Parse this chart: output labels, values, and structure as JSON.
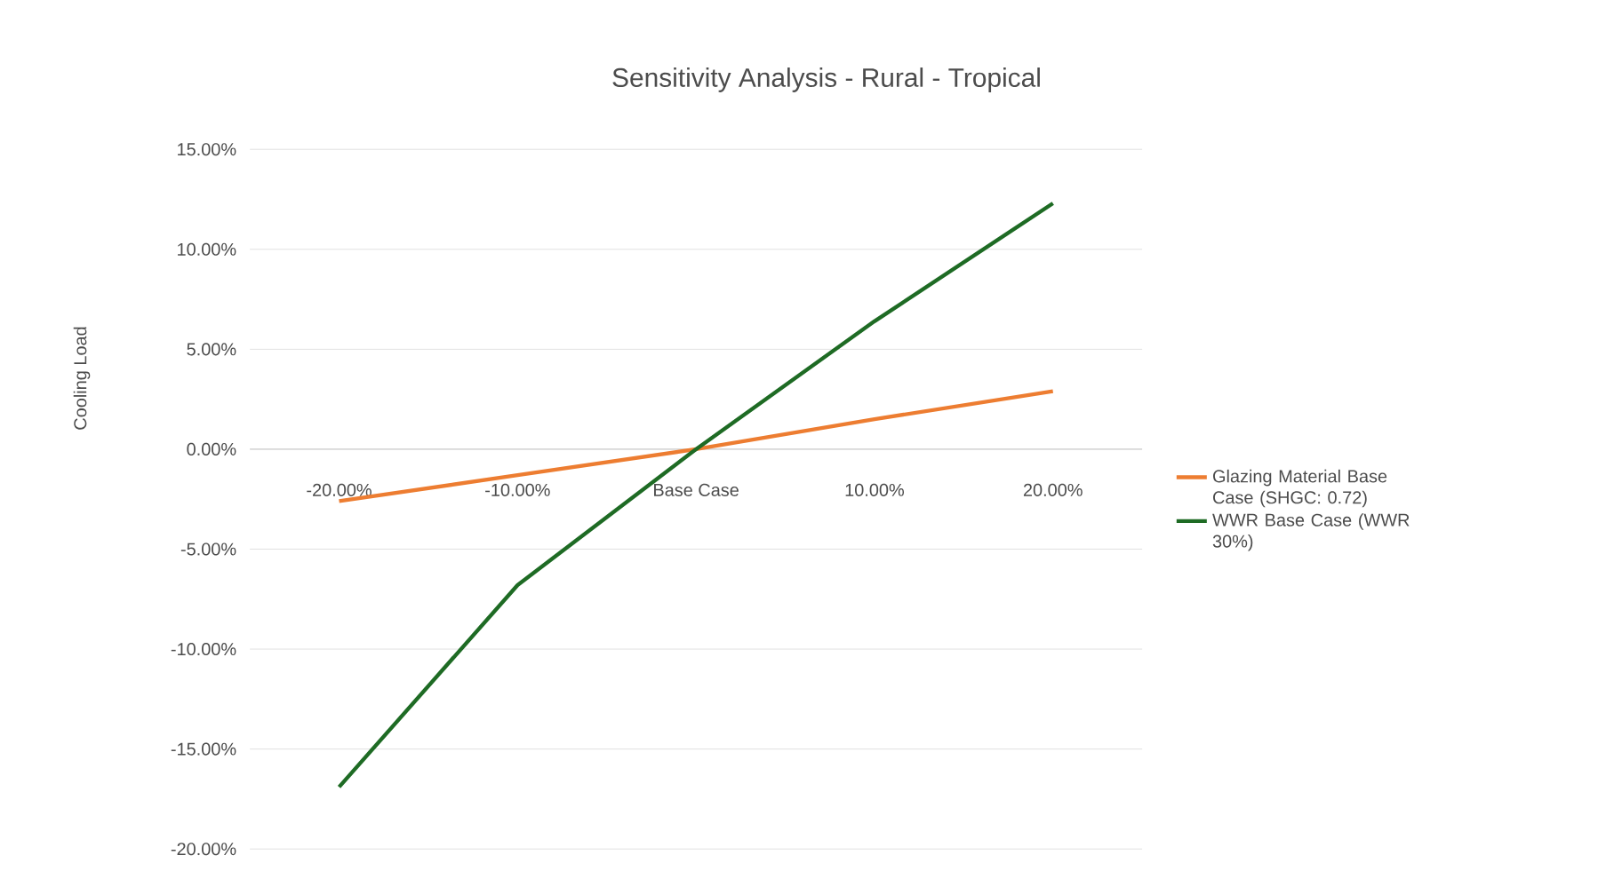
{
  "chart_data": {
    "type": "line",
    "title": "Sensitivity Analysis - Rural - Tropical",
    "ylabel": "Cooling Load",
    "categories": [
      "-20.00%",
      "-10.00%",
      "Base Case",
      "10.00%",
      "20.00%"
    ],
    "series": [
      {
        "name": "Glazing Material Base Case (SHGC: 0.72)",
        "color": "#ed7d31",
        "values": [
          -2.6,
          -1.3,
          0,
          1.5,
          2.9
        ]
      },
      {
        "name": "WWR Base Case (WWR 30%)",
        "color": "#1e6b24",
        "values": [
          -16.9,
          -6.8,
          0,
          6.4,
          12.3
        ]
      }
    ],
    "ylim": [
      -20,
      15
    ],
    "yticks": [
      {
        "value": -20,
        "label": "-20.00%"
      },
      {
        "value": -15,
        "label": "-15.00%"
      },
      {
        "value": -10,
        "label": "-10.00%"
      },
      {
        "value": -5,
        "label": "-5.00%"
      },
      {
        "value": 0,
        "label": "0.00%"
      },
      {
        "value": 5,
        "label": "5.00%"
      },
      {
        "value": 10,
        "label": "10.00%"
      },
      {
        "value": 15,
        "label": "15.00%"
      }
    ],
    "grid": "y",
    "legend": "right",
    "marker": "none",
    "line_style": "solid"
  }
}
